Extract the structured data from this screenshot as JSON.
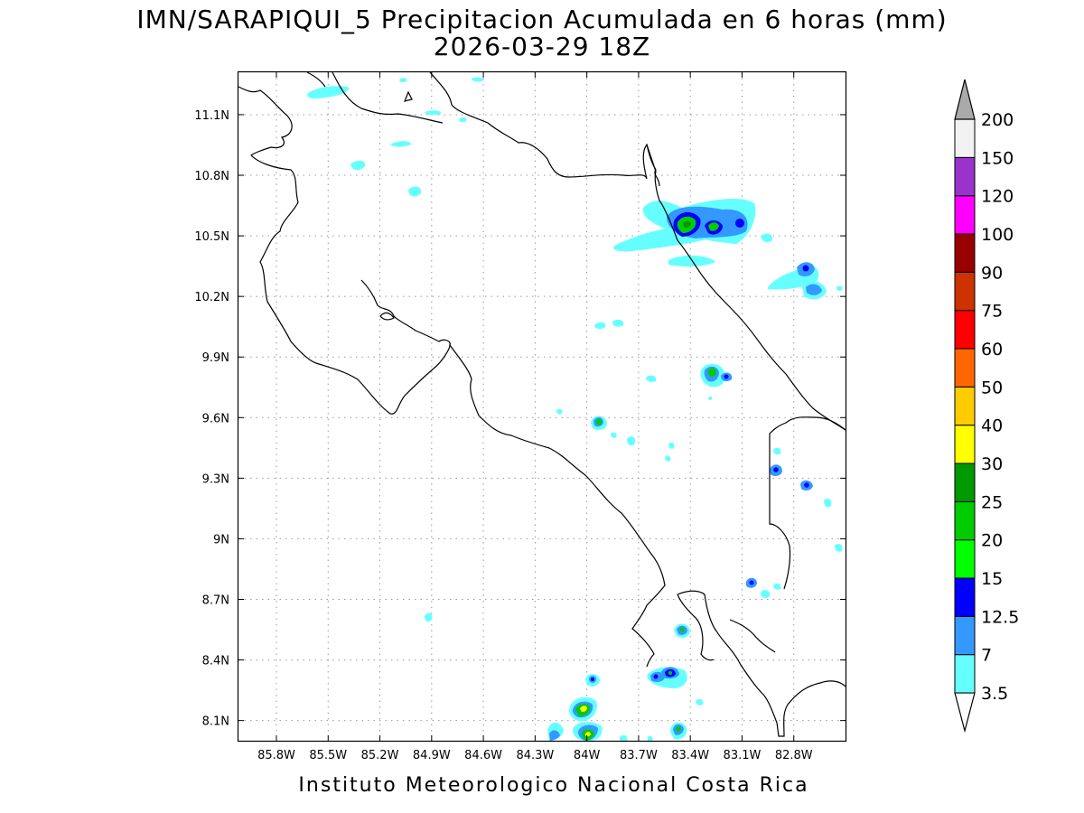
{
  "title": {
    "line1": "IMN/SARAPIQUI_5 Precipitacion Acumulada en 6 horas (mm)",
    "line2": "2026-03-29 18Z"
  },
  "footer": "Instituto Meteorologico Nacional Costa Rica",
  "map": {
    "lon_range": [
      -86.02,
      -82.5
    ],
    "lat_range": [
      8.0,
      11.31
    ],
    "lon_ticks": [
      {
        "value": -85.8,
        "label": "85.8W"
      },
      {
        "value": -85.5,
        "label": "85.5W"
      },
      {
        "value": -85.2,
        "label": "85.2W"
      },
      {
        "value": -84.9,
        "label": "84.9W"
      },
      {
        "value": -84.6,
        "label": "84.6W"
      },
      {
        "value": -84.3,
        "label": "84.3W"
      },
      {
        "value": -84.0,
        "label": "84W"
      },
      {
        "value": -83.7,
        "label": "83.7W"
      },
      {
        "value": -83.4,
        "label": "83.4W"
      },
      {
        "value": -83.1,
        "label": "83.1W"
      },
      {
        "value": -82.8,
        "label": "82.8W"
      }
    ],
    "lat_ticks": [
      {
        "value": 11.1,
        "label": "11.1N"
      },
      {
        "value": 10.8,
        "label": "10.8N"
      },
      {
        "value": 10.5,
        "label": "10.5N"
      },
      {
        "value": 10.2,
        "label": "10.2N"
      },
      {
        "value": 9.9,
        "label": "9.9N"
      },
      {
        "value": 9.6,
        "label": "9.6N"
      },
      {
        "value": 9.3,
        "label": "9.3N"
      },
      {
        "value": 9.0,
        "label": "9N"
      },
      {
        "value": 8.7,
        "label": "8.7N"
      },
      {
        "value": 8.4,
        "label": "8.4N"
      },
      {
        "value": 8.1,
        "label": "8.1N"
      }
    ],
    "grid": true
  },
  "colorbar": {
    "labels": [
      "3.5",
      "7",
      "12.5",
      "15",
      "20",
      "25",
      "30",
      "40",
      "50",
      "60",
      "75",
      "90",
      "100",
      "120",
      "150",
      "200"
    ],
    "colors": [
      "#66ffff",
      "#3399ff",
      "#0000ff",
      "#00ff00",
      "#00cc00",
      "#009900",
      "#ffff00",
      "#ffcc00",
      "#ff6600",
      "#ff0000",
      "#cc3300",
      "#990000",
      "#ff00ff",
      "#9933cc",
      "#f2f2f2",
      "#aaaaaa"
    ]
  }
}
